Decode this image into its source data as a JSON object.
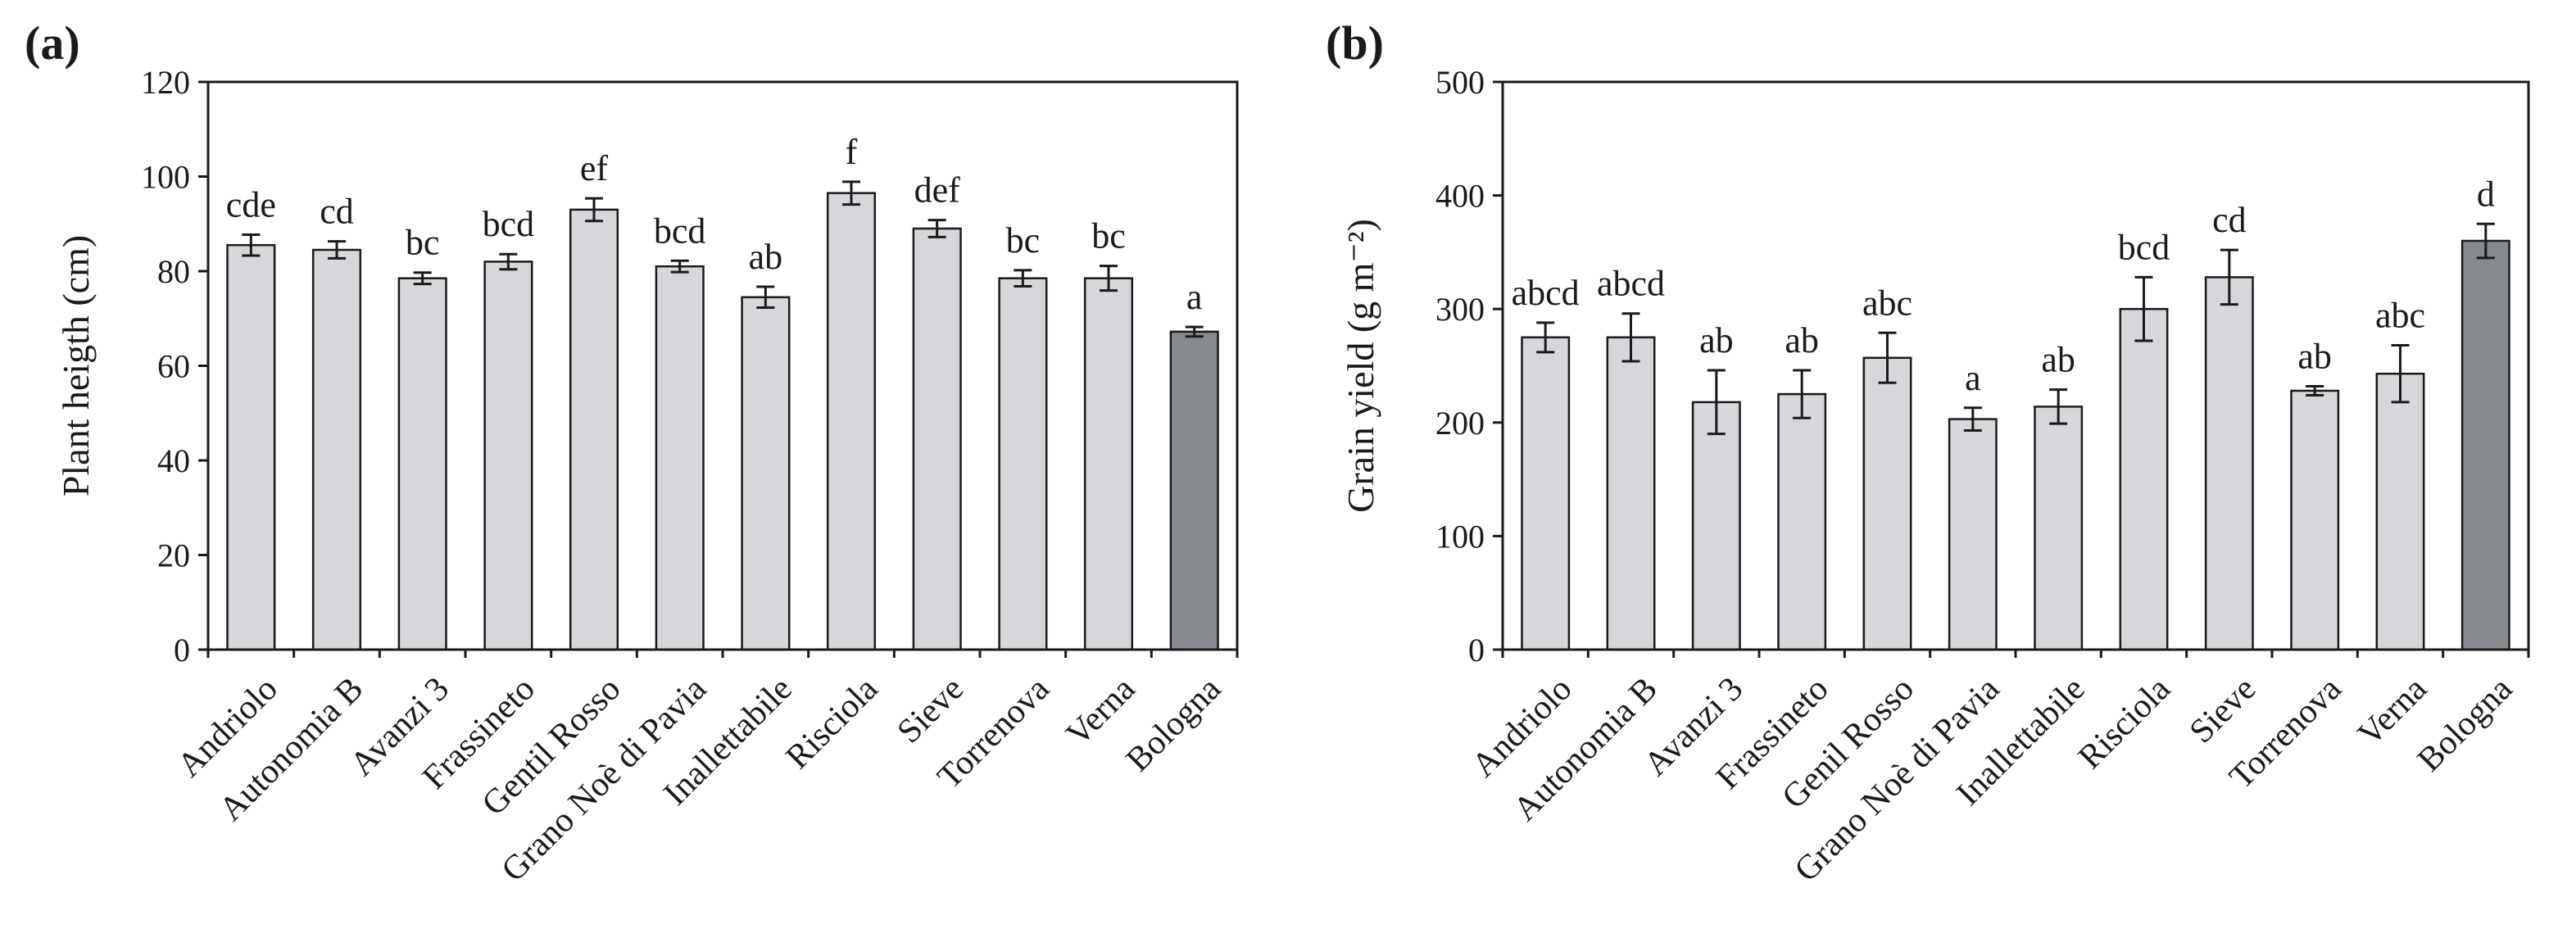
{
  "figure": {
    "bar_color": "#d5d7da",
    "highlight_color": "#868a8f",
    "outline_color": "#1a1a1a"
  },
  "chart_data": [
    {
      "panel": "(a)",
      "type": "bar",
      "title": "",
      "xlabel": "",
      "ylabel": "Plant heigth (cm)",
      "ylim": [
        0,
        120
      ],
      "yticks": [
        0,
        20,
        40,
        60,
        80,
        100,
        120
      ],
      "grid": false,
      "categories": [
        "Andriolo",
        "Autonomia B",
        "Avanzi 3",
        "Frassineto",
        "Gentil Rosso",
        "Grano Noè di Pavia",
        "Inallettabile",
        "Risciola",
        "Sieve",
        "Torrenova",
        "Verna",
        "Bologna"
      ],
      "values": [
        85.5,
        84.5,
        78.5,
        82,
        93,
        81,
        74.5,
        96.5,
        89,
        78.5,
        78.5,
        67.2
      ],
      "errors": [
        2.2,
        1.8,
        1.2,
        1.6,
        2.4,
        1.2,
        2.2,
        2.4,
        1.8,
        1.7,
        2.6,
        1.0
      ],
      "significance": [
        "cde",
        "cd",
        "bc",
        "bcd",
        "ef",
        "bcd",
        "ab",
        "f",
        "def",
        "bc",
        "bc",
        "a"
      ],
      "highlight": [
        false,
        false,
        false,
        false,
        false,
        false,
        false,
        false,
        false,
        false,
        false,
        true
      ]
    },
    {
      "panel": "(b)",
      "type": "bar",
      "title": "",
      "xlabel": "",
      "ylabel": "Grain yield (g m⁻²)",
      "ylim": [
        0,
        500
      ],
      "yticks": [
        0,
        100,
        200,
        300,
        400,
        500
      ],
      "grid": false,
      "categories": [
        "Andriolo",
        "Autonomia B",
        "Avanzi 3",
        "Frassineto",
        "Genil Rosso",
        "Grano Noè di Pavia",
        "Inallettabile",
        "Risciola",
        "Sieve",
        "Torrenova",
        "Verna",
        "Bologna"
      ],
      "values": [
        275,
        275,
        218,
        225,
        257,
        203,
        214,
        300,
        328,
        228,
        243,
        360
      ],
      "errors": [
        13,
        21,
        28,
        21,
        22,
        10,
        15,
        28,
        24,
        4,
        25,
        15
      ],
      "significance": [
        "abcd",
        "abcd",
        "ab",
        "ab",
        "abc",
        "a",
        "ab",
        "bcd",
        "cd",
        "ab",
        "abc",
        "d"
      ],
      "highlight": [
        false,
        false,
        false,
        false,
        false,
        false,
        false,
        false,
        false,
        false,
        false,
        true
      ]
    }
  ]
}
